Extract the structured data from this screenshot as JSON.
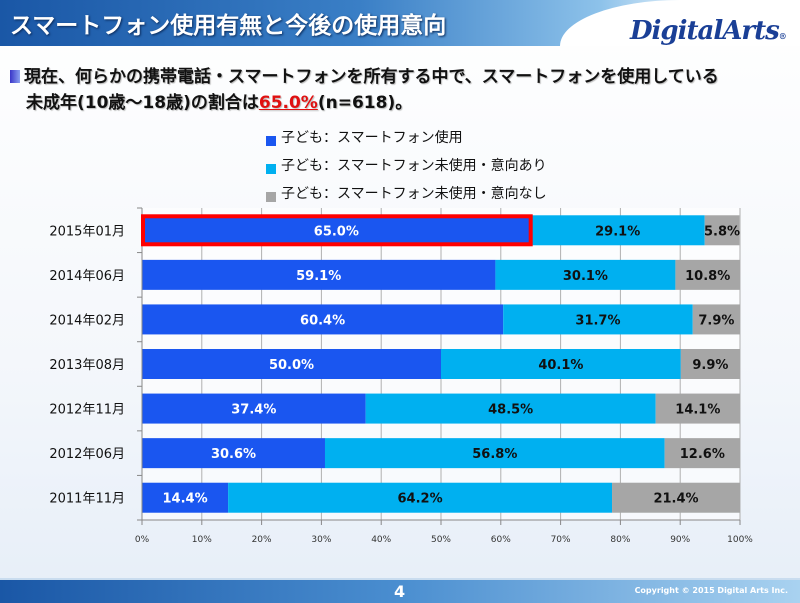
{
  "header": {
    "title": "スマートフォン使用有無と今後の使用意向",
    "logo": "DigitalArts",
    "logo_mark": "®"
  },
  "subtitle": {
    "line1": "現在、何らかの携帯電話・スマートフォンを所有する中で、スマートフォンを使用している",
    "line2_pre": "未成年(10歳～18歳)の割合は",
    "line2_highlight": "65.0%",
    "line2_post": "(n=618)。"
  },
  "colors": {
    "using": "#1a56f0",
    "intend": "#00b0f0",
    "no_intent": "#a6a6a6",
    "highlight": "#ff0000"
  },
  "chart_data": {
    "type": "bar",
    "orientation": "horizontal",
    "stacked": "percent",
    "title": "",
    "xlabel": "",
    "ylabel": "",
    "xlim": [
      0,
      100
    ],
    "x_ticks": [
      "0%",
      "10%",
      "20%",
      "30%",
      "40%",
      "50%",
      "60%",
      "70%",
      "80%",
      "90%",
      "100%"
    ],
    "grid": true,
    "legend_position": "top",
    "categories": [
      "2015年01月",
      "2014年06月",
      "2014年02月",
      "2013年08月",
      "2012年11月",
      "2012年06月",
      "2011年11月"
    ],
    "highlighted_category": "2015年01月",
    "series": [
      {
        "name": "子ども：スマートフォン使用",
        "values": [
          65.0,
          59.1,
          60.4,
          50.0,
          37.4,
          30.6,
          14.4
        ],
        "labels": [
          "65.0%",
          "59.1%",
          "60.4%",
          "50.0%",
          "37.4%",
          "30.6%",
          "14.4%"
        ]
      },
      {
        "name": "子ども：スマートフォン未使用・意向あり",
        "values": [
          29.1,
          30.1,
          31.7,
          40.1,
          48.5,
          56.8,
          64.2
        ],
        "labels": [
          "29.1%",
          "30.1%",
          "31.7%",
          "40.1%",
          "48.5%",
          "56.8%",
          "64.2%"
        ]
      },
      {
        "name": "子ども：スマートフォン未使用・意向なし",
        "values": [
          5.8,
          10.8,
          7.9,
          9.9,
          14.1,
          12.6,
          21.4
        ],
        "labels": [
          "5.8%",
          "10.8%",
          "7.9%",
          "9.9%",
          "14.1%",
          "12.6%",
          "21.4%"
        ]
      }
    ]
  },
  "footer": {
    "page_number": "4",
    "copyright": "Copyright © 2015 Digital Arts Inc."
  }
}
